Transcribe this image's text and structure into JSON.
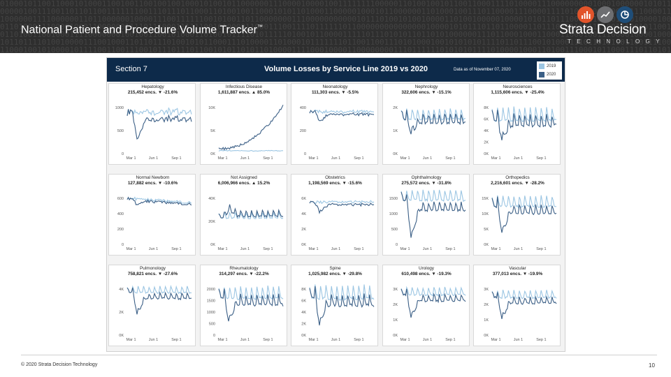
{
  "header": {
    "title": "National Patient and Procedure Volume Tracker",
    "tm": "™",
    "brand": "Strata Decision",
    "brand_sub": "TECHNOLOGY"
  },
  "dashboard": {
    "section": "Section 7",
    "title": "Volume Losses by Service Line 2019 vs 2020",
    "date_label": "Data as of November 07, 2020",
    "legend": [
      {
        "label": "2019",
        "color": "#9cc6e3"
      },
      {
        "label": "2020",
        "color": "#3b5f86"
      }
    ]
  },
  "footer": {
    "copyright": "© 2020 Strata Decision Technology",
    "page": "10"
  },
  "chart_data": {
    "type": "line",
    "x_ticks": [
      "Mar 1",
      "Jun 1",
      "Sep 1"
    ],
    "panels": [
      {
        "name": "Hepatology",
        "encs": "215,452",
        "dir": "down",
        "pct": "-21.6%",
        "y_ticks": [
          "0",
          "500",
          "1000"
        ],
        "ylim": [
          0,
          1400
        ],
        "base": 1050,
        "amp": 150,
        "trend": 0,
        "dip": 0.7,
        "weekly": false
      },
      {
        "name": "Infectious Disease",
        "encs": "1,611,887",
        "dir": "up",
        "pct": "85.0%",
        "y_ticks": [
          "0K",
          "5K",
          "10K"
        ],
        "ylim": [
          0,
          14000
        ],
        "base": 700,
        "amp": 200,
        "trend": 0,
        "dip": 0,
        "weekly": false,
        "rise2020": [
          1200,
          12000
        ]
      },
      {
        "name": "Neonatology",
        "encs": "111,303",
        "dir": "down",
        "pct": "-5.5%",
        "y_ticks": [
          "0",
          "200",
          "400"
        ],
        "ylim": [
          0,
          500
        ],
        "base": 375,
        "amp": 25,
        "trend": 0,
        "dip": 0.25,
        "weekly": false
      },
      {
        "name": "Nephrology",
        "encs": "322,606",
        "dir": "down",
        "pct": "-15.1%",
        "y_ticks": [
          "0K",
          "1K",
          "2K"
        ],
        "ylim": [
          0,
          2200
        ],
        "base": 1450,
        "amp": 300,
        "trend": 0,
        "dip": 0.45,
        "weekly": true
      },
      {
        "name": "Neurosciences",
        "encs": "1,115,606",
        "dir": "down",
        "pct": "-25.4%",
        "y_ticks": [
          "0K",
          "2K",
          "4K",
          "6K",
          "8K"
        ],
        "ylim": [
          0,
          8500
        ],
        "base": 5500,
        "amp": 1500,
        "trend": 0,
        "dip": 0.65,
        "weekly": true
      },
      {
        "name": "Normal Newborn",
        "encs": "127,882",
        "dir": "down",
        "pct": "-10.6%",
        "y_ticks": [
          "0",
          "200",
          "400",
          "600"
        ],
        "ylim": [
          0,
          700
        ],
        "base": 580,
        "amp": 30,
        "trend": -60,
        "dip": 0.15,
        "weekly": false
      },
      {
        "name": "Not Assigned",
        "encs": "6,006,966",
        "dir": "up",
        "pct": "15.2%",
        "y_ticks": [
          "0K",
          "20K",
          "40K"
        ],
        "ylim": [
          0,
          55000
        ],
        "base": 27000,
        "amp": 4000,
        "trend": 0,
        "dip": -0.3,
        "weekly": true
      },
      {
        "name": "Obstetrics",
        "encs": "1,198,569",
        "dir": "down",
        "pct": "-15.6%",
        "y_ticks": [
          "0K",
          "2K",
          "4K",
          "6K"
        ],
        "ylim": [
          0,
          7000
        ],
        "base": 5300,
        "amp": 300,
        "trend": 0,
        "dip": 0.25,
        "weekly": false
      },
      {
        "name": "Ophthalmology",
        "encs": "275,572",
        "dir": "down",
        "pct": "-31.8%",
        "y_ticks": [
          "0",
          "500",
          "1000",
          "1500"
        ],
        "ylim": [
          0,
          1800
        ],
        "base": 1500,
        "amp": 250,
        "trend": 0,
        "dip": 0.9,
        "weekly": true
      },
      {
        "name": "Orthopedics",
        "encs": "2,216,601",
        "dir": "down",
        "pct": "-28.2%",
        "y_ticks": [
          "0K",
          "5K",
          "10K",
          "15K"
        ],
        "ylim": [
          0,
          18000
        ],
        "base": 13000,
        "amp": 2500,
        "trend": 0,
        "dip": 0.75,
        "weekly": true
      },
      {
        "name": "Pulmonology",
        "encs": "758,821",
        "dir": "down",
        "pct": "-27.6%",
        "y_ticks": [
          "0K",
          "2K",
          "4K"
        ],
        "ylim": [
          0,
          6000
        ],
        "base": 4700,
        "amp": 500,
        "trend": 0,
        "dip": 0.55,
        "weekly": true
      },
      {
        "name": "Rheumatology",
        "encs": "314,297",
        "dir": "down",
        "pct": "-22.2%",
        "y_ticks": [
          "0",
          "500",
          "1000",
          "1500",
          "2000"
        ],
        "ylim": [
          0,
          2200
        ],
        "base": 1550,
        "amp": 350,
        "trend": 0,
        "dip": 0.7,
        "weekly": true
      },
      {
        "name": "Spine",
        "encs": "1,025,982",
        "dir": "down",
        "pct": "-29.8%",
        "y_ticks": [
          "0K",
          "2K",
          "4K",
          "6K",
          "8K"
        ],
        "ylim": [
          0,
          8500
        ],
        "base": 6000,
        "amp": 1500,
        "trend": 0,
        "dip": 0.75,
        "weekly": true
      },
      {
        "name": "Urology",
        "encs": "610,498",
        "dir": "down",
        "pct": "-19.3%",
        "y_ticks": [
          "0K",
          "1K",
          "2K",
          "3K"
        ],
        "ylim": [
          0,
          4000
        ],
        "base": 3000,
        "amp": 400,
        "trend": 0,
        "dip": 0.6,
        "weekly": true
      },
      {
        "name": "Vascular",
        "encs": "377,013",
        "dir": "down",
        "pct": "-19.9%",
        "y_ticks": [
          "0K",
          "1K",
          "2K",
          "3K"
        ],
        "ylim": [
          0,
          4000
        ],
        "base": 2800,
        "amp": 400,
        "trend": 0,
        "dip": 0.6,
        "weekly": true
      }
    ]
  }
}
